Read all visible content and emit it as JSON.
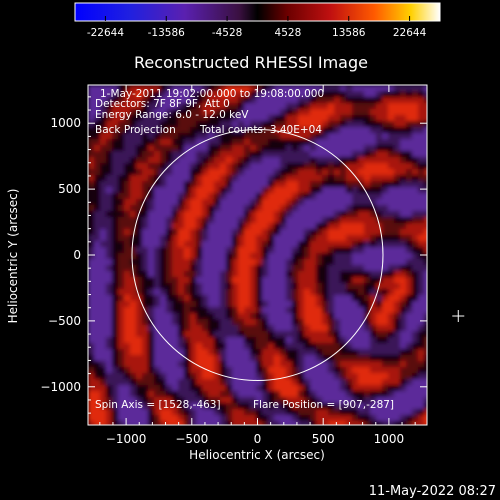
{
  "chart_data": {
    "type": "heatmap",
    "title": "Reconstructed RHESSI Image",
    "xlabel": "Heliocentric X (arcsec)",
    "ylabel": "Heliocentric Y (arcsec)",
    "xlim": [
      -1290,
      1290
    ],
    "ylim": [
      -1290,
      1290
    ],
    "xticks": [
      -1000,
      -500,
      0,
      500,
      1000
    ],
    "yticks": [
      1000,
      500,
      0,
      -500,
      -1000
    ],
    "colorbar": {
      "ticks": [
        "-22644",
        "-13586",
        "-4528",
        "4528",
        "13586",
        "22644"
      ],
      "range": [
        -22644,
        22644
      ]
    },
    "annotations": {
      "time_range": "1-May-2011 19:02:00.000 to 19:08:00.000",
      "detectors": "Detectors: 7F 8F 9F, Att 0",
      "energy": "Energy Range: 6.0 - 12.0 keV",
      "method": "Back Projection",
      "counts": "Total counts: 3.40E+04",
      "spin_axis": "Spin Axis = [1528,-463]",
      "flare_position": "Flare Position = [907,-287]"
    },
    "solar_disk_radius_arcsec": 955,
    "flare_source": {
      "x": 907,
      "y": -287
    },
    "secondary_source": {
      "x": 1040,
      "y": 100
    },
    "map_center_marker": {
      "x": 1528,
      "y": -463
    },
    "timestamp": "11-May-2022 08:27"
  }
}
